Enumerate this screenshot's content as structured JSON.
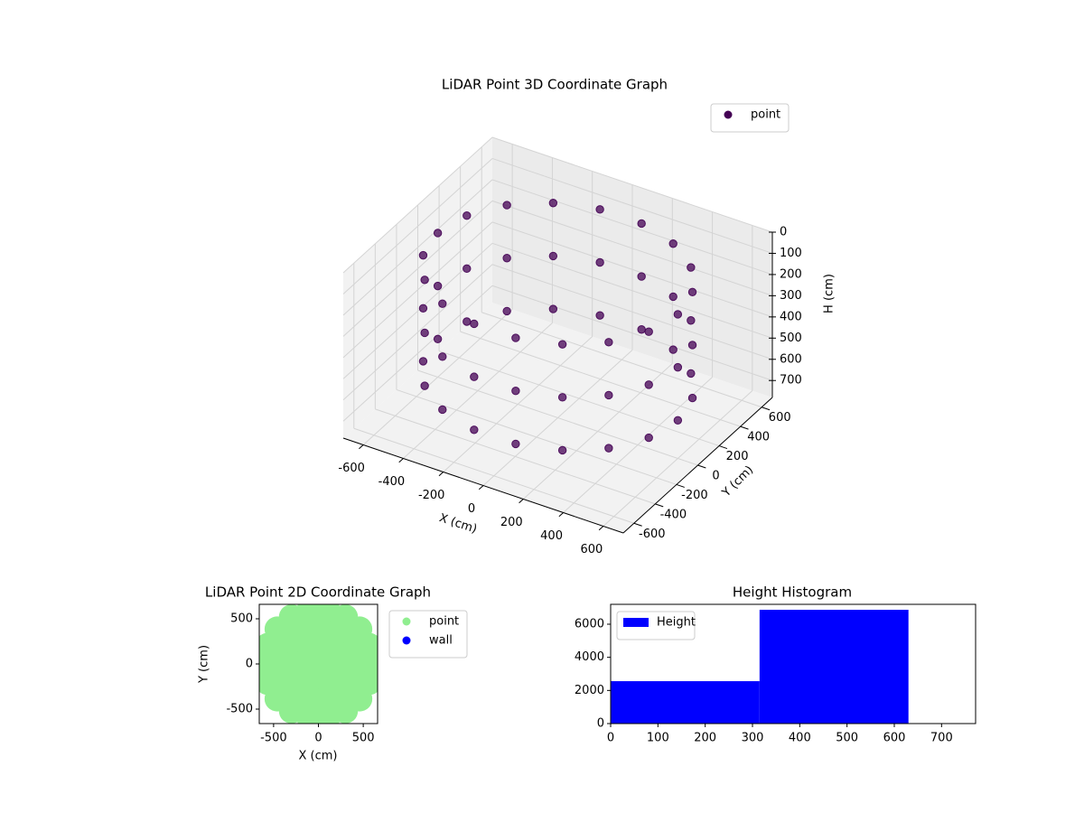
{
  "chart_data": [
    {
      "type": "scatter3d",
      "title": "LiDAR Point 3D Coordinate Graph",
      "xlabel": "X (cm)",
      "ylabel": "Y (cm)",
      "zlabel": "H (cm)",
      "series": [
        {
          "name": "point",
          "color": "#440154",
          "x": [
            600,
            564,
            460,
            300,
            104,
            -104,
            -300,
            -460,
            -564,
            -600,
            -564,
            -460,
            -300,
            -104,
            104,
            300,
            460,
            564,
            600,
            564,
            460,
            300,
            104,
            -104,
            -300,
            -460,
            -564,
            -600,
            -564,
            -460,
            -300,
            -104,
            104,
            300,
            460,
            564,
            600,
            564,
            460,
            300,
            104,
            -104,
            -300,
            -460,
            -564,
            -600,
            -564,
            -460,
            -300,
            -104,
            104,
            300,
            460,
            564
          ],
          "y": [
            0,
            205,
            386,
            520,
            591,
            591,
            520,
            386,
            205,
            0,
            -205,
            -386,
            -520,
            -591,
            -591,
            -520,
            -386,
            -205,
            0,
            205,
            386,
            520,
            591,
            591,
            520,
            386,
            205,
            0,
            -205,
            -386,
            -520,
            -591,
            -591,
            -520,
            -386,
            -205,
            0,
            205,
            386,
            520,
            591,
            591,
            520,
            386,
            205,
            0,
            -205,
            -386,
            -520,
            -591,
            -591,
            -520,
            -386,
            -205
          ],
          "z": [
            100,
            100,
            100,
            100,
            100,
            100,
            100,
            100,
            100,
            100,
            100,
            100,
            100,
            100,
            100,
            100,
            100,
            100,
            350,
            350,
            350,
            350,
            350,
            350,
            350,
            350,
            350,
            350,
            350,
            350,
            350,
            350,
            350,
            350,
            350,
            350,
            600,
            600,
            600,
            600,
            600,
            600,
            600,
            600,
            600,
            600,
            600,
            600,
            600,
            600,
            600,
            600,
            600,
            600
          ]
        }
      ],
      "xlim": [
        -700,
        700
      ],
      "ylim": [
        -700,
        700
      ],
      "zlim": [
        0,
        780
      ],
      "z_inverted": true,
      "xticks": [
        -600,
        -400,
        -200,
        0,
        200,
        400,
        600
      ],
      "yticks": [
        -600,
        -400,
        -200,
        0,
        200,
        400,
        600
      ],
      "zticks": [
        0,
        100,
        200,
        300,
        400,
        500,
        600,
        700
      ],
      "grid": true,
      "legend": "upper right"
    },
    {
      "type": "scatter",
      "title": "LiDAR Point 2D Coordinate Graph",
      "xlabel": "X (cm)",
      "ylabel": "Y (cm)",
      "series": [
        {
          "name": "point",
          "color": "#90ee90",
          "x": [
            600,
            564,
            460,
            300,
            104,
            -104,
            -300,
            -460,
            -564,
            -600,
            -564,
            -460,
            -300,
            -104,
            104,
            300,
            460,
            564,
            400,
            346,
            200,
            0,
            -200,
            -346,
            -400,
            -346,
            -200,
            0,
            200,
            346,
            200,
            100,
            -100,
            -200,
            -100,
            100,
            0
          ],
          "y": [
            0,
            205,
            386,
            520,
            591,
            591,
            520,
            386,
            205,
            0,
            -205,
            -386,
            -520,
            -591,
            -591,
            -520,
            -386,
            -205,
            0,
            200,
            346,
            400,
            346,
            200,
            0,
            -200,
            -346,
            -400,
            -346,
            -200,
            0,
            173,
            173,
            0,
            -173,
            -173,
            0
          ]
        },
        {
          "name": "wall",
          "color": "#0000ff",
          "x": [],
          "y": []
        }
      ],
      "xlim": [
        -660,
        660
      ],
      "ylim": [
        -660,
        660
      ],
      "xticks": [
        -500,
        0,
        500
      ],
      "yticks": [
        -500,
        0,
        500
      ],
      "legend": "outside upper right"
    },
    {
      "type": "histogram",
      "title": "Height Histogram",
      "series": [
        {
          "name": "Height",
          "color": "#0000ff",
          "values": [
            2560,
            6870
          ]
        }
      ],
      "bins": [
        0,
        315,
        630
      ],
      "xlim": [
        0,
        772
      ],
      "ylim": [
        0,
        7200
      ],
      "xticks": [
        0,
        100,
        200,
        300,
        400,
        500,
        600,
        700
      ],
      "yticks": [
        0,
        2000,
        4000,
        6000
      ],
      "legend": "upper left"
    }
  ]
}
